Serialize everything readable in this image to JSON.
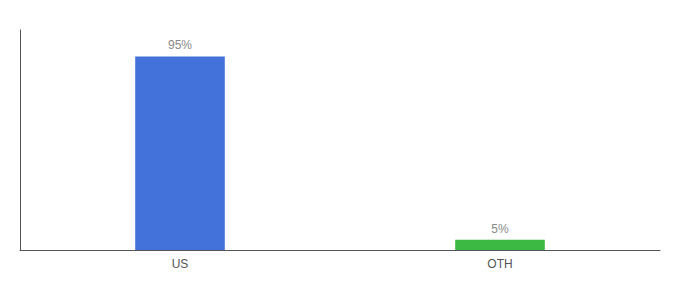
{
  "chart_data": {
    "type": "bar",
    "categories": [
      "US",
      "OTH"
    ],
    "values": [
      95,
      5
    ],
    "value_labels": [
      "95%",
      "5%"
    ],
    "colors": [
      "#4472db",
      "#3cb943"
    ],
    "ylim": [
      0,
      108
    ],
    "data_labels": true,
    "tick_labels": "x",
    "grid": false
  }
}
